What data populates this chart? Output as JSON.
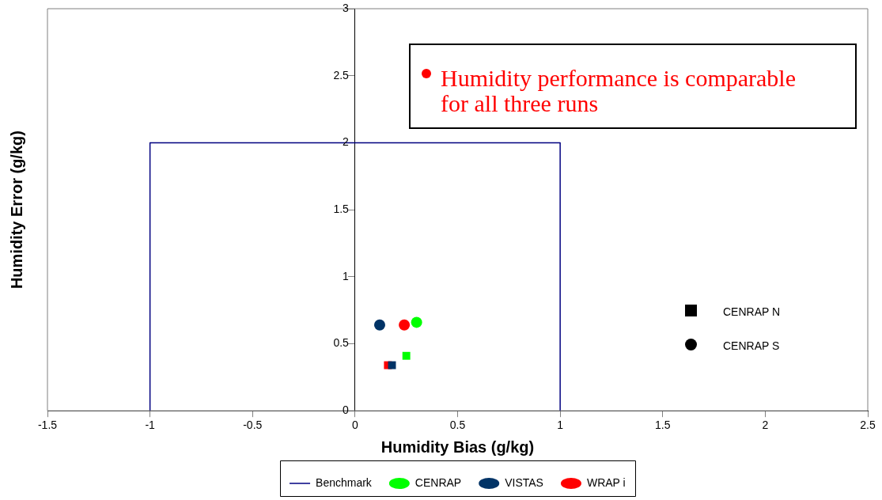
{
  "chart_data": {
    "type": "scatter",
    "xlabel": "Humidity Bias (g/kg)",
    "ylabel": "Humidity Error (g/kg)",
    "xlim": [
      -1.5,
      2.5
    ],
    "xticks": [
      -1.5,
      -1,
      -0.5,
      0,
      0.5,
      1,
      1.5,
      2,
      2.5
    ],
    "ylim": [
      0,
      3
    ],
    "yticks": [
      0,
      0.5,
      1,
      1.5,
      2,
      2.5,
      3
    ],
    "grid": false,
    "legend": "bottom",
    "annotations": [
      "Humidity performance is comparable for all three runs",
      "CENRAP N",
      "CENRAP S"
    ],
    "series": [
      {
        "name": "Benchmark",
        "type": "line",
        "color": "#000080",
        "marker": "none",
        "x": [
          -1,
          -1,
          1,
          1
        ],
        "values": [
          0,
          2,
          2,
          0
        ]
      },
      {
        "name": "CENRAP",
        "color": "#00ff00",
        "marker": "circle",
        "x": [
          0.3
        ],
        "values": [
          0.66
        ]
      },
      {
        "name": "VISTAS",
        "color": "#003366",
        "marker": "circle",
        "x": [
          0.12
        ],
        "values": [
          0.64
        ]
      },
      {
        "name": "WRAP i",
        "color": "#ff0000",
        "marker": "circle",
        "x": [
          0.24
        ],
        "values": [
          0.64
        ]
      },
      {
        "color": "#00ff00",
        "marker": "square",
        "x": [
          0.25
        ],
        "values": [
          0.41
        ]
      },
      {
        "color": "#003366",
        "marker": "square",
        "x": [
          0.18
        ],
        "values": [
          0.34
        ]
      },
      {
        "color": "#ff0000",
        "marker": "square",
        "x": [
          0.16
        ],
        "values": [
          0.34
        ]
      }
    ]
  }
}
